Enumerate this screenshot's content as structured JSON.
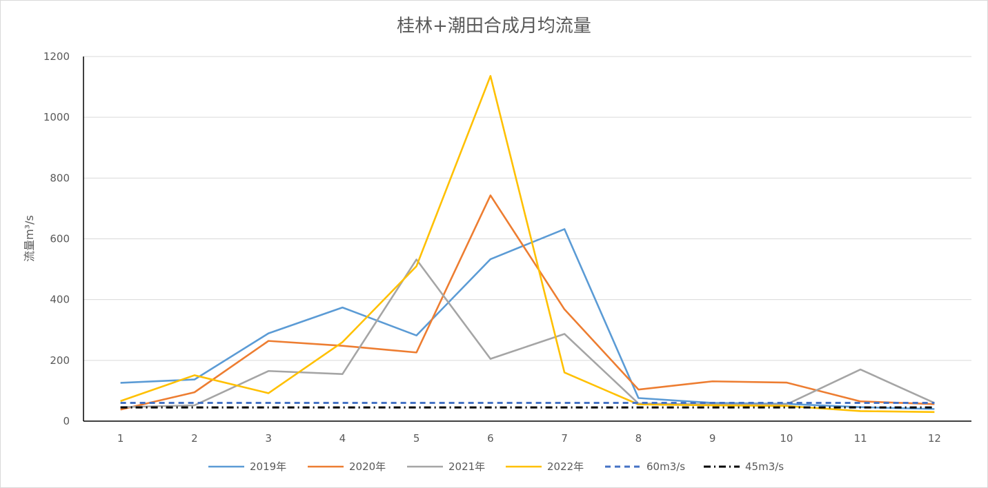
{
  "chart_data": {
    "type": "line",
    "title": "桂林+潮田合成月均流量",
    "xlabel": "",
    "ylabel": "流量m³/s",
    "ylim": [
      0,
      1200
    ],
    "yticks": [
      0,
      200,
      400,
      600,
      800,
      1000,
      1200
    ],
    "categories": [
      "1",
      "2",
      "3",
      "4",
      "5",
      "6",
      "7",
      "8",
      "9",
      "10",
      "11",
      "12"
    ],
    "grid": "horizontal",
    "legend_position": "bottom",
    "series": [
      {
        "name": "2019年",
        "color": "#5B9BD5",
        "style": "solid",
        "values": [
          126,
          137,
          289,
          374,
          282,
          533,
          632,
          76,
          60,
          57,
          46,
          40
        ]
      },
      {
        "name": "2020年",
        "color": "#ED7D31",
        "style": "solid",
        "values": [
          38,
          95,
          264,
          248,
          226,
          743,
          368,
          104,
          131,
          127,
          65,
          56
        ]
      },
      {
        "name": "2021年",
        "color": "#A5A5A5",
        "style": "solid",
        "values": [
          46,
          52,
          165,
          155,
          532,
          205,
          287,
          58,
          55,
          55,
          170,
          60
        ]
      },
      {
        "name": "2022年",
        "color": "#FFC000",
        "style": "solid",
        "values": [
          66,
          151,
          92,
          260,
          510,
          1136,
          160,
          55,
          52,
          50,
          33,
          30
        ]
      },
      {
        "name": "60m3/s",
        "color": "#4472C4",
        "style": "dashed",
        "values": [
          60,
          60,
          60,
          60,
          60,
          60,
          60,
          60,
          60,
          60,
          60,
          60
        ]
      },
      {
        "name": "45m3/s",
        "color": "#000000",
        "style": "dashdot",
        "values": [
          45,
          45,
          45,
          45,
          45,
          45,
          45,
          45,
          45,
          45,
          45,
          45
        ]
      }
    ]
  }
}
